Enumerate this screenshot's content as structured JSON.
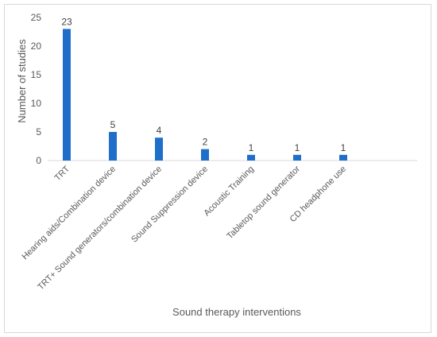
{
  "chart_data": {
    "type": "bar",
    "categories": [
      "TRT",
      "Hearing aids/Combination device",
      "TRT+ Sound generators/combination device",
      "Sound Suppression device",
      "Acoustic Training",
      "Tabletop sound generator",
      "CD headphone use"
    ],
    "values": [
      23,
      5,
      4,
      2,
      1,
      1,
      1
    ],
    "data_labels": [
      "23",
      "5",
      "4",
      "2",
      "1",
      "1",
      "1"
    ],
    "xlabel": "Sound therapy interventions",
    "ylabel": "Number of studies",
    "ylim": [
      0,
      25
    ],
    "yticks": [
      0,
      5,
      10,
      15,
      20,
      25
    ],
    "grid": false,
    "legend": "none",
    "bar_color": "#1f6fca"
  }
}
